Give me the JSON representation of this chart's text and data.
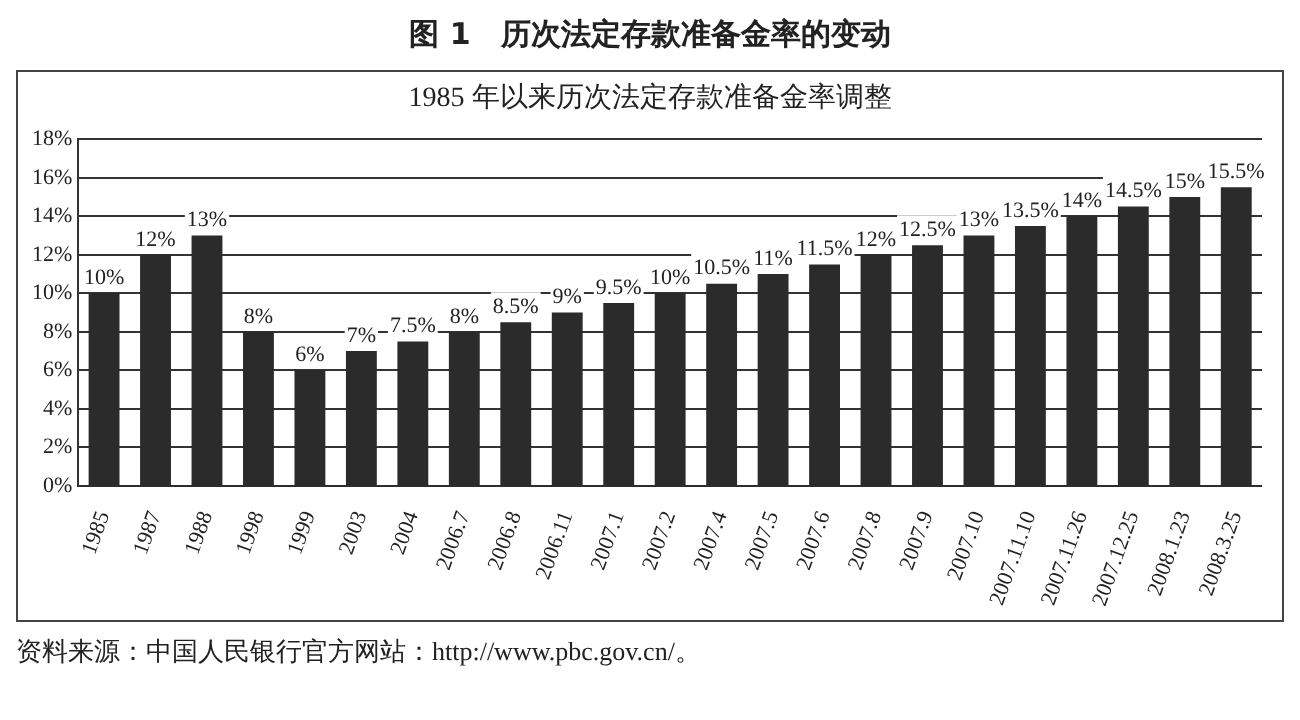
{
  "chart_data": {
    "type": "bar",
    "title": "图 1　历次法定存款准备金率的变动",
    "subtitle": "1985 年以来历次法定存款准备金率调整",
    "categories": [
      "1985",
      "1987",
      "1988",
      "1998",
      "1999",
      "2003",
      "2004",
      "2006.7",
      "2006.8",
      "2006.11",
      "2007.1",
      "2007.2",
      "2007.4",
      "2007.5",
      "2007.6",
      "2007.8",
      "2007.9",
      "2007.10",
      "2007.11.10",
      "2007.11.26",
      "2007.12.25",
      "2008.1.23",
      "2008.3.25"
    ],
    "values": [
      10,
      12,
      13,
      8,
      6,
      7,
      7.5,
      8,
      8.5,
      9,
      9.5,
      10,
      10.5,
      11,
      11.5,
      12,
      12.5,
      13,
      13.5,
      14,
      14.5,
      15,
      15.5
    ],
    "value_labels": [
      "10%",
      "12%",
      "13%",
      "8%",
      "6%",
      "7%",
      "7.5%",
      "8%",
      "8.5%",
      "9%",
      "9.5%",
      "10%",
      "10.5%",
      "11%",
      "11.5%",
      "12%",
      "12.5%",
      "13%",
      "13.5%",
      "14%",
      "14.5%",
      "15%",
      "15.5%"
    ],
    "color": "#2b2b2b",
    "ylim": [
      0,
      18
    ],
    "yticks": [
      {
        "value": 0,
        "label": "0%"
      },
      {
        "value": 2,
        "label": "2%"
      },
      {
        "value": 4,
        "label": "4%"
      },
      {
        "value": 6,
        "label": "6%"
      },
      {
        "value": 8,
        "label": "8%"
      },
      {
        "value": 10,
        "label": "10%"
      },
      {
        "value": 12,
        "label": "12%"
      },
      {
        "value": 14,
        "label": "14%"
      },
      {
        "value": 16,
        "label": "16%"
      },
      {
        "value": 18,
        "label": "18%"
      }
    ],
    "grid": "y",
    "legend": false,
    "annotations": [
      "资料来源：中国人民银行官方网站：http://www.pbc.gov.cn/。"
    ]
  }
}
